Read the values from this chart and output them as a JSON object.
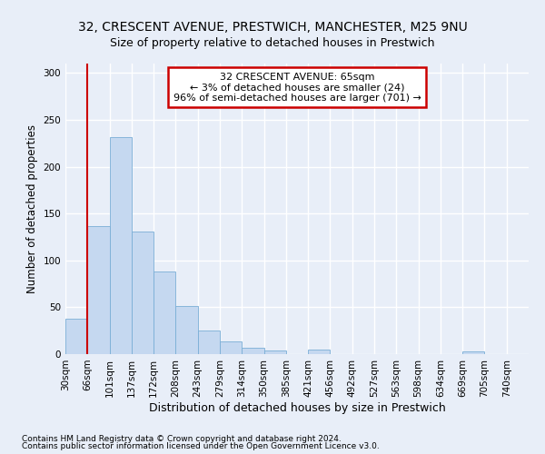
{
  "title1": "32, CRESCENT AVENUE, PRESTWICH, MANCHESTER, M25 9NU",
  "title2": "Size of property relative to detached houses in Prestwich",
  "xlabel": "Distribution of detached houses by size in Prestwich",
  "ylabel": "Number of detached properties",
  "footnote1": "Contains HM Land Registry data © Crown copyright and database right 2024.",
  "footnote2": "Contains public sector information licensed under the Open Government Licence v3.0.",
  "bin_labels": [
    "30sqm",
    "66sqm",
    "101sqm",
    "137sqm",
    "172sqm",
    "208sqm",
    "243sqm",
    "279sqm",
    "314sqm",
    "350sqm",
    "385sqm",
    "421sqm",
    "456sqm",
    "492sqm",
    "527sqm",
    "563sqm",
    "598sqm",
    "634sqm",
    "669sqm",
    "705sqm",
    "740sqm"
  ],
  "bar_values": [
    38,
    137,
    232,
    131,
    88,
    51,
    25,
    14,
    7,
    4,
    0,
    5,
    0,
    0,
    0,
    0,
    0,
    0,
    3,
    0,
    0
  ],
  "bar_color": "#c5d8f0",
  "bar_edge_color": "#7aaed6",
  "annotation_box_text": "32 CRESCENT AVENUE: 65sqm\n← 3% of detached houses are smaller (24)\n96% of semi-detached houses are larger (701) →",
  "annotation_box_color": "white",
  "annotation_box_edge_color": "#cc0000",
  "annotation_line_color": "#cc0000",
  "ylim": [
    0,
    310
  ],
  "yticks": [
    0,
    50,
    100,
    150,
    200,
    250,
    300
  ],
  "fig_background_color": "#e8eef8",
  "plot_background_color": "#e8eef8",
  "grid_color": "white",
  "title1_fontsize": 10,
  "title2_fontsize": 9,
  "xlabel_fontsize": 9,
  "ylabel_fontsize": 8.5,
  "tick_fontsize": 7.5,
  "footnote_fontsize": 6.5,
  "annot_fontsize": 8
}
